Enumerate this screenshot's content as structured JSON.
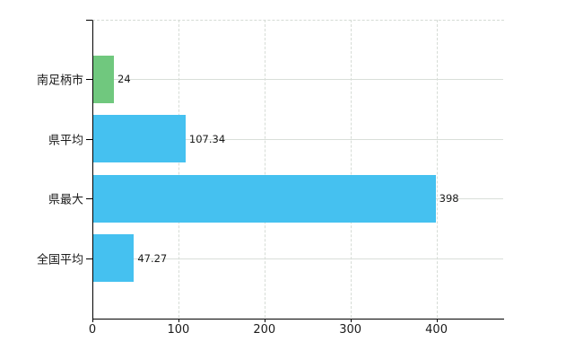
{
  "chart_data": {
    "type": "bar",
    "orientation": "horizontal",
    "title": "",
    "xlabel": "",
    "ylabel": "",
    "categories": [
      "南足柄市",
      "県平均",
      "県最大",
      "全国平均"
    ],
    "values": [
      24,
      107.34,
      398,
      47.27
    ],
    "value_labels": [
      "24",
      "107.34",
      "398",
      "47.27"
    ],
    "x_ticks": [
      0,
      100,
      200,
      300,
      400
    ],
    "x_tick_labels": [
      "0",
      "100",
      "200",
      "300",
      "400"
    ],
    "xlim": [
      0,
      477.6
    ],
    "grid": true,
    "legend": false,
    "colors": {
      "bar_colors": [
        "#70c87e",
        "#45c1f0",
        "#45c1f0",
        "#45c1f0"
      ],
      "grid_color": "#d9ded9",
      "axis_color": "#000000",
      "text_color": "#1b1b1b",
      "background": "#ffffff"
    }
  }
}
